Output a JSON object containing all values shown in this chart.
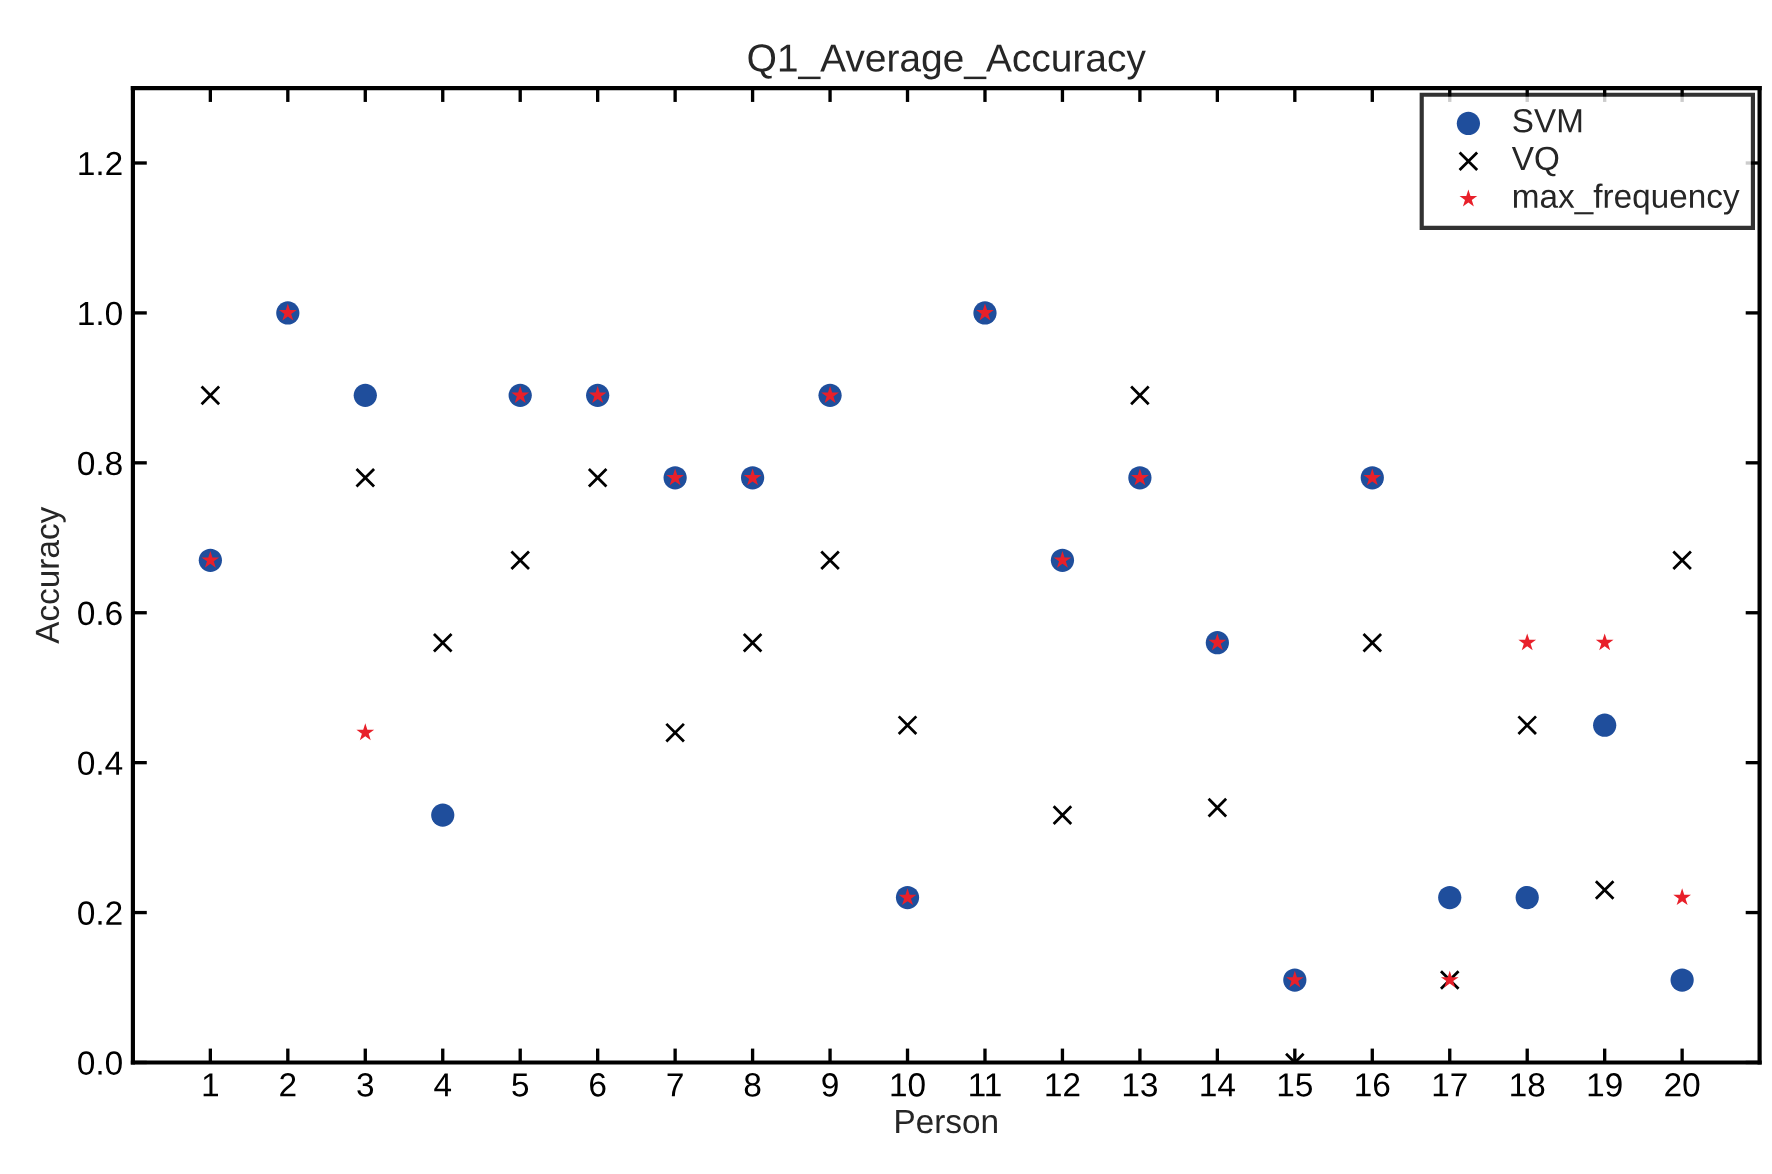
{
  "chart_data": {
    "type": "scatter",
    "title": "Q1_Average_Accuracy",
    "xlabel": "Person",
    "ylabel": "Accuracy",
    "x": [
      1,
      2,
      3,
      4,
      5,
      6,
      7,
      8,
      9,
      10,
      11,
      12,
      13,
      14,
      15,
      16,
      17,
      18,
      19,
      20
    ],
    "series": [
      {
        "name": "SVM",
        "color": "#1f4e9c",
        "marker": "circle",
        "values": [
          0.67,
          1.0,
          0.89,
          0.33,
          0.89,
          0.89,
          0.78,
          0.78,
          0.89,
          0.22,
          1.0,
          0.67,
          0.78,
          0.56,
          0.11,
          0.78,
          0.22,
          0.22,
          0.45,
          0.11
        ]
      },
      {
        "name": "VQ",
        "color": "#000000",
        "marker": "cross",
        "values": [
          0.89,
          null,
          0.78,
          0.56,
          0.67,
          0.78,
          0.44,
          0.56,
          0.67,
          0.45,
          null,
          0.33,
          0.89,
          0.34,
          0.0,
          0.56,
          0.11,
          0.45,
          0.23,
          0.67
        ]
      },
      {
        "name": "max_frequency",
        "color": "#e8202a",
        "marker": "star",
        "values": [
          0.67,
          1.0,
          0.44,
          null,
          0.89,
          0.89,
          0.78,
          0.78,
          0.89,
          0.22,
          1.0,
          0.67,
          0.78,
          0.56,
          0.11,
          0.78,
          0.11,
          0.56,
          0.56,
          0.22
        ]
      }
    ],
    "xlim": [
      0,
      21
    ],
    "ylim": [
      0,
      1.3
    ],
    "xticks": [
      1,
      2,
      3,
      4,
      5,
      6,
      7,
      8,
      9,
      10,
      11,
      12,
      13,
      14,
      15,
      16,
      17,
      18,
      19,
      20
    ],
    "yticks": [
      {
        "value": 0,
        "label": "0.0"
      },
      {
        "value": 0.2,
        "label": "0.2"
      },
      {
        "value": 0.4,
        "label": "0.4"
      },
      {
        "value": 0.6,
        "label": "0.6"
      },
      {
        "value": 0.8,
        "label": "0.8"
      },
      {
        "value": 1.0,
        "label": "1.0"
      },
      {
        "value": 1.2,
        "label": "1.2"
      }
    ],
    "grid": false,
    "legend": "top right"
  }
}
